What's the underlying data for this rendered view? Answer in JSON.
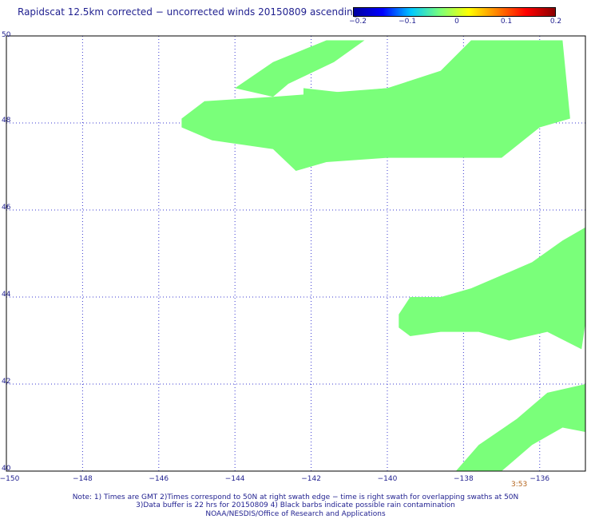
{
  "title": "Rapidscat 12.5km corrected − uncorrected winds 20150809 ascending",
  "colorbar": {
    "ticks": [
      "−0.2",
      "−0.1",
      "0",
      "0.1",
      "0.2"
    ],
    "colors": [
      "#0000a0",
      "#0000ff",
      "#00c8ff",
      "#7aff7a",
      "#ffff00",
      "#ff8000",
      "#ff0000",
      "#8b0000"
    ],
    "range": [
      -0.2,
      0.2
    ]
  },
  "time_label": "3:53",
  "notes": {
    "line1": "Note: 1) Times are GMT 2)Times correspond to 50N at right swath edge − time is right swath for overlapping swaths at 50N",
    "line2": "3)Data buffer is 22 hrs for 20150809 4) Black barbs indicate possible rain contamination",
    "line3": "NOAA/NESDIS/Office of Research and Applications"
  },
  "chart_data": {
    "type": "heatmap",
    "title": "Rapidscat 12.5km corrected − uncorrected winds 20150809 ascending",
    "xlabel": "",
    "ylabel": "",
    "xlim": [
      -150,
      -134.8
    ],
    "ylim": [
      40,
      50
    ],
    "x_tick_labels": [
      "−150",
      "−148",
      "−146",
      "−144",
      "−142",
      "−140",
      "−138",
      "−136"
    ],
    "y_tick_labels": [
      "40",
      "42",
      "44",
      "46",
      "48",
      "50"
    ],
    "x_ticks": [
      -150,
      -148,
      -146,
      -144,
      -142,
      -140,
      -138,
      -136
    ],
    "y_ticks": [
      40,
      42,
      44,
      46,
      48,
      50
    ],
    "grid": true,
    "value_color": "#7aff7a",
    "value": 0,
    "regions": [
      {
        "name": "northern swath",
        "polygon": [
          [
            -145.4,
            48.1
          ],
          [
            -144.8,
            48.5
          ],
          [
            -143.0,
            48.6
          ],
          [
            -140.0,
            48.8
          ],
          [
            -138.6,
            49.2
          ],
          [
            -137.8,
            49.9
          ],
          [
            -135.4,
            49.9
          ],
          [
            -135.2,
            48.1
          ],
          [
            -136.0,
            47.9
          ],
          [
            -137.0,
            47.2
          ],
          [
            -140.0,
            47.2
          ],
          [
            -141.6,
            47.1
          ],
          [
            -142.4,
            46.9
          ],
          [
            -143.0,
            47.4
          ],
          [
            -144.6,
            47.6
          ],
          [
            -145.4,
            47.9
          ]
        ]
      },
      {
        "name": "northern band tip",
        "polygon": [
          [
            -144.0,
            48.8
          ],
          [
            -143.0,
            49.4
          ],
          [
            -141.6,
            49.9
          ],
          [
            -140.6,
            49.9
          ],
          [
            -141.4,
            49.4
          ],
          [
            -142.6,
            48.9
          ],
          [
            -143.0,
            48.6
          ]
        ]
      },
      {
        "name": "northern band streak",
        "polygon": [
          [
            -142.2,
            48.8
          ],
          [
            -141.2,
            48.7
          ],
          [
            -140.0,
            48.8
          ],
          [
            -139.6,
            48.7
          ],
          [
            -141.0,
            48.6
          ],
          [
            -142.2,
            48.6
          ]
        ]
      },
      {
        "name": "central swath",
        "polygon": [
          [
            -139.7,
            43.6
          ],
          [
            -139.4,
            44.0
          ],
          [
            -138.6,
            44.0
          ],
          [
            -137.8,
            44.2
          ],
          [
            -137.0,
            44.5
          ],
          [
            -136.2,
            44.8
          ],
          [
            -135.4,
            45.3
          ],
          [
            -134.8,
            45.6
          ],
          [
            -134.8,
            43.4
          ],
          [
            -134.9,
            42.8
          ],
          [
            -135.8,
            43.2
          ],
          [
            -136.8,
            43.0
          ],
          [
            -137.6,
            43.2
          ],
          [
            -138.6,
            43.2
          ],
          [
            -139.4,
            43.1
          ],
          [
            -139.7,
            43.3
          ]
        ]
      },
      {
        "name": "southern swath",
        "polygon": [
          [
            -138.2,
            40.0
          ],
          [
            -137.6,
            40.6
          ],
          [
            -136.6,
            41.2
          ],
          [
            -135.8,
            41.8
          ],
          [
            -134.8,
            42.0
          ],
          [
            -134.8,
            40.9
          ],
          [
            -135.4,
            41.0
          ],
          [
            -136.2,
            40.6
          ],
          [
            -137.0,
            40.0
          ]
        ]
      }
    ]
  }
}
